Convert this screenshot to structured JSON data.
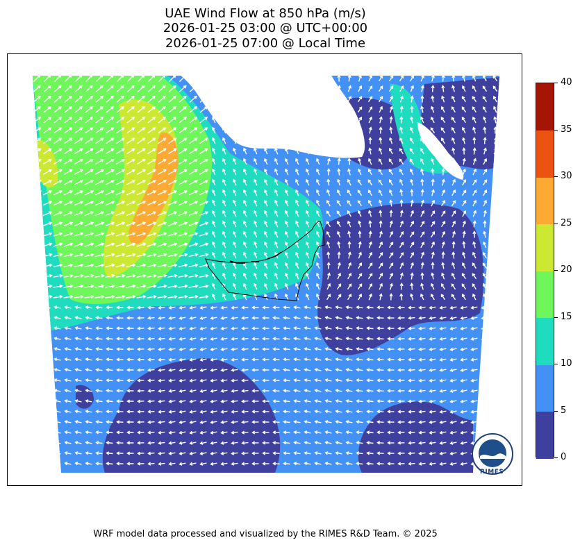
{
  "title": {
    "line1": "UAE Wind Flow at 850 hPa (m/s)",
    "line2": "2026-01-25 03:00 @ UTC+00:00",
    "line3": "2026-01-25 07:00 @ Local Time"
  },
  "colorbar": {
    "levels": [
      0,
      5,
      10,
      15,
      20,
      25,
      30,
      35,
      40
    ],
    "labels": [
      "0",
      "5",
      "10",
      "15",
      "20",
      "25",
      "30",
      "35",
      "40"
    ],
    "colors": [
      "#3f3f9e",
      "#4391f5",
      "#1fdcbf",
      "#6ef65a",
      "#cde832",
      "#fdaa35",
      "#ec5212",
      "#a51503"
    ]
  },
  "logo": {
    "text": "RIMES",
    "ring_text": "Regional Integrated Multi-Hazard Early Warning System"
  },
  "footer": "WRF model data processed and visualized by the RIMES R&D Team. © 2025"
}
